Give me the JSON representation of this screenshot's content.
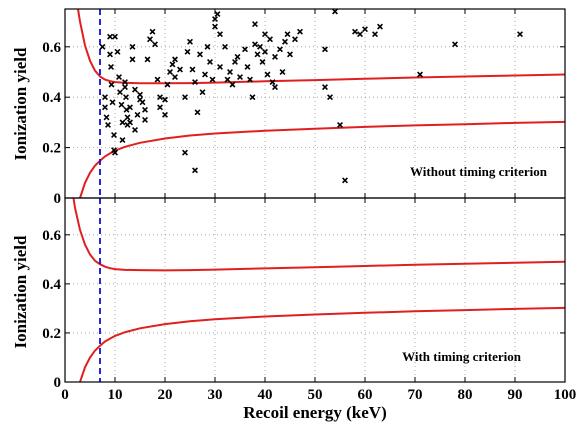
{
  "chart_data": [
    {
      "type": "scatter",
      "title": "",
      "xlabel": "",
      "ylabel": "Ionization yield",
      "xlim": [
        0,
        100
      ],
      "ylim": [
        0,
        0.75
      ],
      "xticks": [],
      "yticks": [
        "0",
        "0.2",
        "0.4",
        "0.6"
      ],
      "grid": true,
      "annotation": "Without timing criterion",
      "threshold_line": {
        "x": 7,
        "style": "dashed",
        "color": "#1010d0"
      },
      "band_color": "#e02020",
      "band_upper": {
        "x": [
          2.6,
          3,
          4,
          5,
          6,
          7,
          8,
          9,
          10,
          12,
          15,
          20,
          25,
          30,
          40,
          50,
          60,
          70,
          80,
          90,
          100
        ],
        "y": [
          0.75,
          0.7,
          0.605,
          0.545,
          0.505,
          0.482,
          0.47,
          0.464,
          0.46,
          0.457,
          0.455,
          0.455,
          0.456,
          0.458,
          0.463,
          0.468,
          0.473,
          0.478,
          0.482,
          0.486,
          0.49
        ]
      },
      "band_lower": {
        "x": [
          3,
          4,
          5,
          6,
          7,
          8,
          9,
          10,
          12,
          15,
          20,
          25,
          30,
          40,
          50,
          60,
          70,
          80,
          90,
          100
        ],
        "y": [
          0.0,
          0.06,
          0.1,
          0.128,
          0.148,
          0.165,
          0.177,
          0.188,
          0.203,
          0.219,
          0.236,
          0.248,
          0.256,
          0.267,
          0.275,
          0.282,
          0.288,
          0.293,
          0.298,
          0.302
        ]
      },
      "series": [
        {
          "marker": "x",
          "color": "#000000",
          "points": [
            [
              7.5,
              0.6
            ],
            [
              8,
              0.4
            ],
            [
              8,
              0.36
            ],
            [
              8.3,
              0.32
            ],
            [
              8.6,
              0.29
            ],
            [
              9,
              0.64
            ],
            [
              9,
              0.57
            ],
            [
              9.2,
              0.52
            ],
            [
              9.3,
              0.45
            ],
            [
              9.5,
              0.38
            ],
            [
              9.8,
              0.25
            ],
            [
              9.8,
              0.19
            ],
            [
              10,
              0.18
            ],
            [
              10,
              0.64
            ],
            [
              10.5,
              0.58
            ],
            [
              10.8,
              0.48
            ],
            [
              11,
              0.42
            ],
            [
              11.3,
              0.37
            ],
            [
              11.5,
              0.3
            ],
            [
              11.5,
              0.23
            ],
            [
              12,
              0.46
            ],
            [
              12,
              0.44
            ],
            [
              12.2,
              0.4
            ],
            [
              12.3,
              0.35
            ],
            [
              12.5,
              0.32
            ],
            [
              12.5,
              0.29
            ],
            [
              13,
              0.3
            ],
            [
              13,
              0.36
            ],
            [
              13.5,
              0.6
            ],
            [
              13.5,
              0.55
            ],
            [
              14,
              0.43
            ],
            [
              14,
              0.27
            ],
            [
              14.5,
              0.33
            ],
            [
              15,
              0.41
            ],
            [
              15,
              0.39
            ],
            [
              15.5,
              0.38
            ],
            [
              16,
              0.35
            ],
            [
              16,
              0.31
            ],
            [
              16.5,
              0.55
            ],
            [
              17,
              0.63
            ],
            [
              17.5,
              0.66
            ],
            [
              18,
              0.61
            ],
            [
              18.5,
              0.47
            ],
            [
              19,
              0.4
            ],
            [
              19,
              0.36
            ],
            [
              20,
              0.39
            ],
            [
              20,
              0.33
            ],
            [
              20.5,
              0.45
            ],
            [
              21,
              0.5
            ],
            [
              21.5,
              0.53
            ],
            [
              22,
              0.55
            ],
            [
              22,
              0.48
            ],
            [
              23,
              0.51
            ],
            [
              24,
              0.4
            ],
            [
              24,
              0.18
            ],
            [
              24.5,
              0.58
            ],
            [
              25,
              0.62
            ],
            [
              25.5,
              0.51
            ],
            [
              26,
              0.46
            ],
            [
              26,
              0.11
            ],
            [
              26.5,
              0.34
            ],
            [
              27,
              0.57
            ],
            [
              27.5,
              0.42
            ],
            [
              28,
              0.49
            ],
            [
              28.5,
              0.6
            ],
            [
              29,
              0.54
            ],
            [
              29.5,
              0.47
            ],
            [
              30,
              0.71
            ],
            [
              30,
              0.68
            ],
            [
              30.5,
              0.73
            ],
            [
              31,
              0.65
            ],
            [
              31,
              0.52
            ],
            [
              32,
              0.6
            ],
            [
              32.5,
              0.47
            ],
            [
              33,
              0.5
            ],
            [
              33.5,
              0.45
            ],
            [
              34,
              0.54
            ],
            [
              34.5,
              0.56
            ],
            [
              35,
              0.48
            ],
            [
              36,
              0.59
            ],
            [
              36.5,
              0.52
            ],
            [
              37,
              0.47
            ],
            [
              37.5,
              0.4
            ],
            [
              38,
              0.69
            ],
            [
              38,
              0.61
            ],
            [
              38.5,
              0.57
            ],
            [
              39,
              0.6
            ],
            [
              39.5,
              0.54
            ],
            [
              40,
              0.65
            ],
            [
              40,
              0.58
            ],
            [
              40.5,
              0.49
            ],
            [
              41,
              0.63
            ],
            [
              41.5,
              0.46
            ],
            [
              42,
              0.56
            ],
            [
              42,
              0.44
            ],
            [
              43,
              0.59
            ],
            [
              43.5,
              0.5
            ],
            [
              44,
              0.62
            ],
            [
              44.5,
              0.65
            ],
            [
              45,
              0.57
            ],
            [
              46,
              0.63
            ],
            [
              47,
              0.66
            ],
            [
              52,
              0.59
            ],
            [
              52,
              0.44
            ],
            [
              53,
              0.4
            ],
            [
              54,
              0.74
            ],
            [
              55,
              0.29
            ],
            [
              56,
              0.07
            ],
            [
              58,
              0.66
            ],
            [
              59,
              0.65
            ],
            [
              60,
              0.67
            ],
            [
              62,
              0.65
            ],
            [
              63,
              0.68
            ],
            [
              71,
              0.49
            ],
            [
              78,
              0.61
            ],
            [
              91,
              0.65
            ]
          ]
        }
      ]
    },
    {
      "type": "line",
      "title": "",
      "xlabel": "Recoil energy (keV)",
      "ylabel": "Ionization yield",
      "xlim": [
        0,
        100
      ],
      "ylim": [
        0,
        0.75
      ],
      "xticks": [
        "0",
        "10",
        "20",
        "30",
        "40",
        "50",
        "60",
        "70",
        "80",
        "90",
        "100"
      ],
      "yticks": [
        "0",
        "0.2",
        "0.4",
        "0.6"
      ],
      "grid": true,
      "annotation": "With timing criterion",
      "threshold_line": {
        "x": 7,
        "style": "dashed",
        "color": "#1010d0"
      },
      "band_color": "#e02020",
      "band_upper": {
        "x": [
          1.7,
          2,
          3,
          4,
          5,
          6,
          7,
          8,
          9,
          10,
          12,
          15,
          20,
          25,
          30,
          40,
          50,
          60,
          70,
          80,
          90,
          100
        ],
        "y": [
          0.75,
          0.71,
          0.62,
          0.56,
          0.52,
          0.494,
          0.48,
          0.47,
          0.464,
          0.46,
          0.457,
          0.456,
          0.455,
          0.456,
          0.458,
          0.463,
          0.468,
          0.473,
          0.478,
          0.482,
          0.486,
          0.49
        ]
      },
      "band_lower": {
        "x": [
          3,
          4,
          5,
          6,
          7,
          8,
          9,
          10,
          12,
          15,
          20,
          25,
          30,
          40,
          50,
          60,
          70,
          80,
          90,
          100
        ],
        "y": [
          0.0,
          0.06,
          0.1,
          0.128,
          0.148,
          0.165,
          0.177,
          0.188,
          0.203,
          0.219,
          0.236,
          0.248,
          0.256,
          0.267,
          0.275,
          0.282,
          0.288,
          0.293,
          0.298,
          0.302
        ]
      }
    }
  ]
}
